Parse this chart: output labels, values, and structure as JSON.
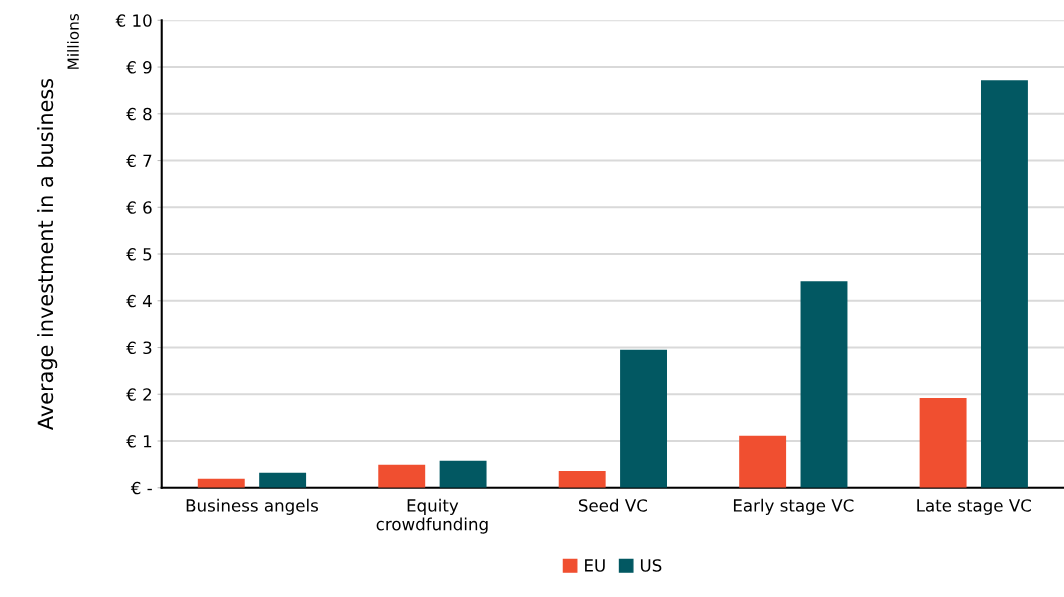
{
  "chart_data": {
    "type": "bar",
    "ylabel": "Average investment in a business",
    "annotations": [
      "Millions"
    ],
    "categories": [
      "Business angels",
      "Equity\ncrowdfunding",
      "Seed VC",
      "Early stage VC",
      "Late stage VC"
    ],
    "series": [
      {
        "name": "EU",
        "color": "#f04f30",
        "values": [
          0.19,
          0.49,
          0.36,
          1.11,
          1.92
        ]
      },
      {
        "name": "US",
        "color": "#025862",
        "values": [
          0.32,
          0.58,
          2.95,
          4.42,
          8.72
        ]
      }
    ],
    "ylim": [
      0,
      10
    ],
    "yticks": [
      {
        "value": 0,
        "label": "€ -"
      },
      {
        "value": 1,
        "label": "€ 1"
      },
      {
        "value": 2,
        "label": "€ 2"
      },
      {
        "value": 3,
        "label": "€ 3"
      },
      {
        "value": 4,
        "label": "€ 4"
      },
      {
        "value": 5,
        "label": "€ 5"
      },
      {
        "value": 6,
        "label": "€ 6"
      },
      {
        "value": 7,
        "label": "€ 7"
      },
      {
        "value": 8,
        "label": "€ 8"
      },
      {
        "value": 9,
        "label": "€ 9"
      },
      {
        "value": 10,
        "label": "€ 10"
      }
    ],
    "grid": "y",
    "legend": "bottom"
  }
}
